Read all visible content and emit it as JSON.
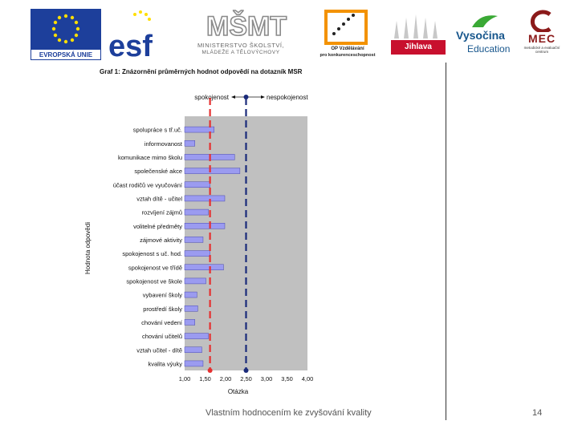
{
  "logos": {
    "eu_caption": "EVROPSKÁ UNIE",
    "esf_label": "esf",
    "msmt_mark": "MŠMT",
    "msmt_caption_1": "MINISTERSTVO ŠKOLSTVÍ,",
    "msmt_caption_2": "MLÁDEŽE A TĚLOVÝCHOVY",
    "op_caption_1": "OP Vzdělávání",
    "op_caption_2": "pro konkurenceschopnost",
    "jihlava_label": "Jihlava",
    "vysocina_1": "Vysočina",
    "vysocina_2": "Education",
    "mec_label": "MEC",
    "mec_caption": "metodické a evaluační centrum"
  },
  "chart_data": {
    "type": "bar",
    "orientation": "horizontal",
    "title": "Graf 1: Znázornění průměrných hodnot odpovědí na dotazník MSR",
    "xlabel": "Otázka",
    "ylabel": "Hodnota odpovědi",
    "xlim": [
      1.0,
      4.0
    ],
    "xticks": [
      "1,00",
      "1,50",
      "2,00",
      "2,50",
      "3,00",
      "3,50",
      "4,00"
    ],
    "legend_left": "spokojenost",
    "legend_right": "nespokojenost",
    "categories": [
      "spolupráce s tř.uč.",
      "informovanost",
      "komunikace mimo školu",
      "společenské akce",
      "účast rodičů ve vyučování",
      "vztah dítě - učitel",
      "rozvíjení zájmů",
      "volitelné předměty",
      "zájmové aktivity",
      "spokojenost s uč. hod.",
      "spokojenost ve třídě",
      "spokojenost ve škole",
      "vybavení školy",
      "prostředí školy",
      "chování vedení",
      "chování učitelů",
      "vztah učitel - dítě",
      "kvalita výuky"
    ],
    "values": [
      1.72,
      1.25,
      2.22,
      2.35,
      1.62,
      1.98,
      1.58,
      1.98,
      1.45,
      1.62,
      1.95,
      1.52,
      1.3,
      1.32,
      1.25,
      1.58,
      1.42,
      1.45
    ],
    "reference_lines": [
      {
        "value": 1.62,
        "color": "#e53030",
        "style": "dashed"
      },
      {
        "value": 2.5,
        "color": "#1a2a7a",
        "style": "dashed"
      }
    ],
    "bar_color": "#9b9bf0",
    "bar_edge": "#4a4ab0",
    "plot_bg": "#c0c0c0"
  },
  "footer": {
    "text": "Vlastním hodnocením ke zvyšování kvality",
    "page": "14"
  }
}
